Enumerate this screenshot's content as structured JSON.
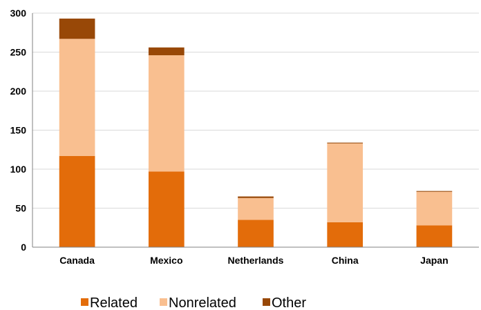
{
  "chart_data": {
    "type": "bar",
    "stacked": true,
    "categories": [
      "Canada",
      "Mexico",
      "Netherlands",
      "China",
      "Japan"
    ],
    "series": [
      {
        "name": "Related",
        "values": [
          117,
          97,
          35,
          32,
          28
        ],
        "color": "#E36C0A"
      },
      {
        "name": "Nonrelated",
        "values": [
          150,
          149,
          28,
          101,
          43
        ],
        "color": "#F9BF90"
      },
      {
        "name": "Other",
        "values": [
          26,
          10,
          2,
          1,
          1
        ],
        "color": "#984807"
      }
    ],
    "yticks": [
      0,
      50,
      100,
      150,
      200,
      250,
      300
    ],
    "ylim": [
      0,
      300
    ],
    "grid": true,
    "legend": "bottom",
    "title": "",
    "xlabel": "",
    "ylabel": ""
  }
}
